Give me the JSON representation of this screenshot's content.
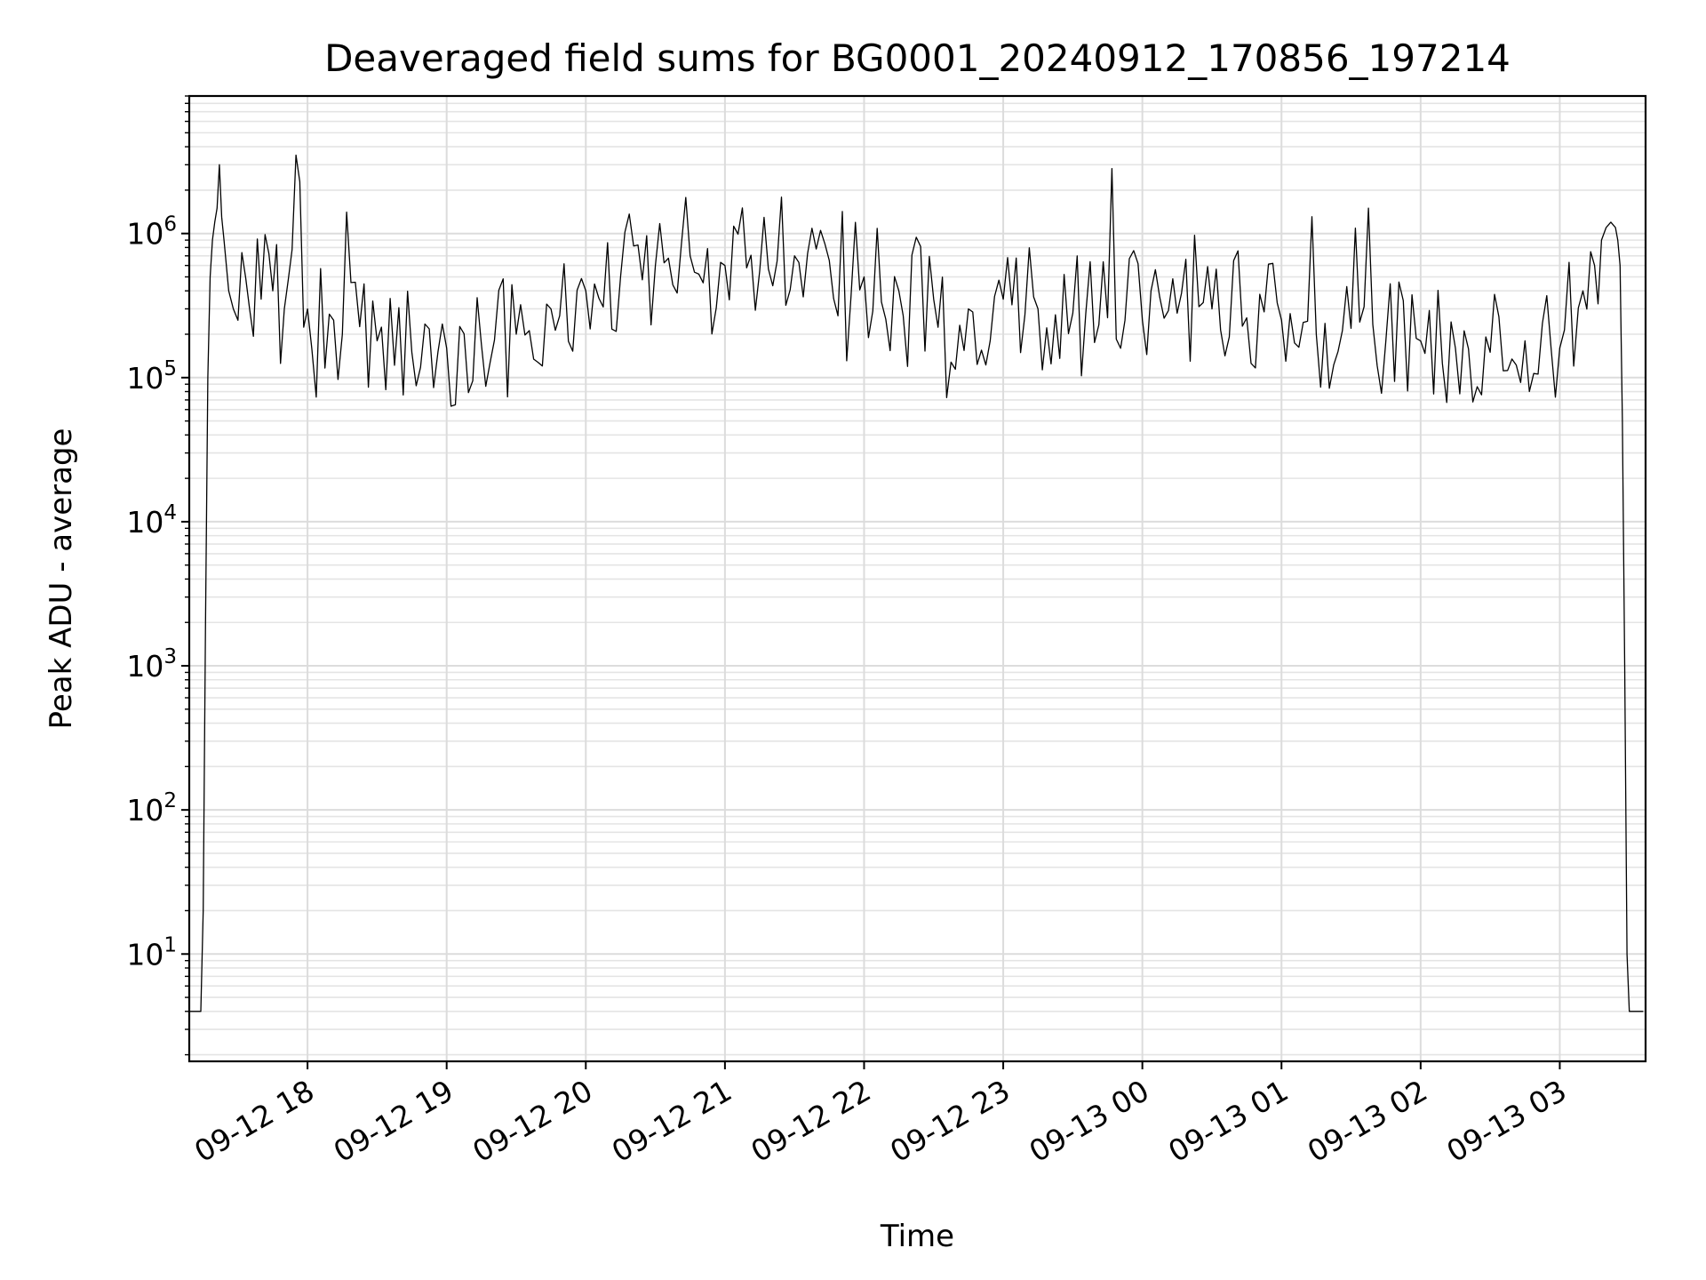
{
  "chart_data": {
    "type": "line",
    "title": "Deaveraged field sums for BG0001_20240912_170856_197214",
    "xlabel": "Time",
    "ylabel": "Peak ADU - average",
    "y_scale": "log",
    "ylim": [
      1.8,
      9000000
    ],
    "xlim": [
      "2024-09-12 17:09",
      "2024-09-13 03:37"
    ],
    "x_ticks": [
      {
        "value": "2024-09-12 18:00",
        "label": "09-12 18"
      },
      {
        "value": "2024-09-12 19:00",
        "label": "09-12 19"
      },
      {
        "value": "2024-09-12 20:00",
        "label": "09-12 20"
      },
      {
        "value": "2024-09-12 21:00",
        "label": "09-12 21"
      },
      {
        "value": "2024-09-12 22:00",
        "label": "09-12 22"
      },
      {
        "value": "2024-09-12 23:00",
        "label": "09-12 23"
      },
      {
        "value": "2024-09-13 00:00",
        "label": "09-13 00"
      },
      {
        "value": "2024-09-13 01:00",
        "label": "09-13 01"
      },
      {
        "value": "2024-09-13 02:00",
        "label": "09-13 02"
      },
      {
        "value": "2024-09-13 03:00",
        "label": "09-13 03"
      }
    ],
    "y_ticks": [
      {
        "value": 10,
        "base": "10",
        "exp": "1"
      },
      {
        "value": 100,
        "base": "10",
        "exp": "2"
      },
      {
        "value": 1000,
        "base": "10",
        "exp": "3"
      },
      {
        "value": 10000,
        "base": "10",
        "exp": "4"
      },
      {
        "value": 100000,
        "base": "10",
        "exp": "5"
      },
      {
        "value": 1000000,
        "base": "10",
        "exp": "6"
      }
    ],
    "grid": true,
    "series_color": "#000000",
    "series": [
      {
        "x": [
          "2024-09-12 17:09",
          "2024-09-12 17:11",
          "2024-09-12 17:12",
          "2024-09-12 17:13",
          "2024-09-12 17:14",
          "2024-09-12 17:15",
          "2024-09-12 17:16",
          "2024-09-12 17:17",
          "2024-09-12 17:18",
          "2024-09-12 17:19",
          "2024-09-12 17:20",
          "2024-09-12 17:21",
          "2024-09-12 17:22",
          "2024-09-12 17:23",
          "2024-09-12 17:24",
          "2024-09-12 17:26",
          "2024-09-12 17:28",
          "2024-09-12 17:30",
          "2024-09-12 17:35",
          "2024-09-12 17:40",
          "2024-09-12 17:45",
          "2024-09-12 17:50",
          "2024-09-12 17:55",
          "2024-09-12 18:00",
          "2024-09-12 18:15",
          "2024-09-12 18:30",
          "2024-09-12 18:45",
          "2024-09-12 19:00",
          "2024-09-12 19:15",
          "2024-09-12 19:30",
          "2024-09-12 19:45",
          "2024-09-12 20:00",
          "2024-09-12 20:15",
          "2024-09-12 20:30",
          "2024-09-12 20:45",
          "2024-09-12 21:00",
          "2024-09-12 21:15",
          "2024-09-12 21:30",
          "2024-09-12 21:45",
          "2024-09-12 22:00",
          "2024-09-12 22:15",
          "2024-09-12 22:30",
          "2024-09-12 22:45",
          "2024-09-12 23:00",
          "2024-09-12 23:15",
          "2024-09-12 23:30",
          "2024-09-12 23:45",
          "2024-09-13 00:00",
          "2024-09-13 00:15",
          "2024-09-13 00:30",
          "2024-09-13 00:45",
          "2024-09-13 01:00",
          "2024-09-13 01:15",
          "2024-09-13 01:30",
          "2024-09-13 01:45",
          "2024-09-13 02:00",
          "2024-09-13 02:15",
          "2024-09-13 02:30",
          "2024-09-13 02:45",
          "2024-09-13 03:00",
          "2024-09-13 03:10",
          "2024-09-13 03:15",
          "2024-09-13 03:18",
          "2024-09-13 03:20",
          "2024-09-13 03:22",
          "2024-09-13 03:24",
          "2024-09-13 03:25",
          "2024-09-13 03:26",
          "2024-09-13 03:27",
          "2024-09-13 03:28",
          "2024-09-13 03:29",
          "2024-09-13 03:30",
          "2024-09-13 03:31",
          "2024-09-13 03:32",
          "2024-09-13 03:34",
          "2024-09-13 03:36"
        ],
        "values": [
          4,
          4,
          4,
          4,
          4,
          20,
          2000,
          100000,
          500000,
          900000,
          1200000,
          1500000,
          3000000,
          1300000,
          900000,
          400000,
          300000,
          250000,
          300000,
          350000,
          400000,
          300000,
          3500000,
          300000,
          200000,
          180000,
          150000,
          160000,
          170000,
          200000,
          300000,
          400000,
          500000,
          600000,
          700000,
          600000,
          550000,
          700000,
          650000,
          500000,
          400000,
          350000,
          300000,
          350000,
          300000,
          280000,
          260000,
          250000,
          280000,
          300000,
          260000,
          250000,
          200000,
          220000,
          180000,
          180000,
          160000,
          150000,
          180000,
          160000,
          400000,
          600000,
          900000,
          1100000,
          1200000,
          1100000,
          900000,
          600000,
          50000,
          1000,
          10,
          4,
          4,
          4,
          4,
          4
        ]
      }
    ]
  }
}
